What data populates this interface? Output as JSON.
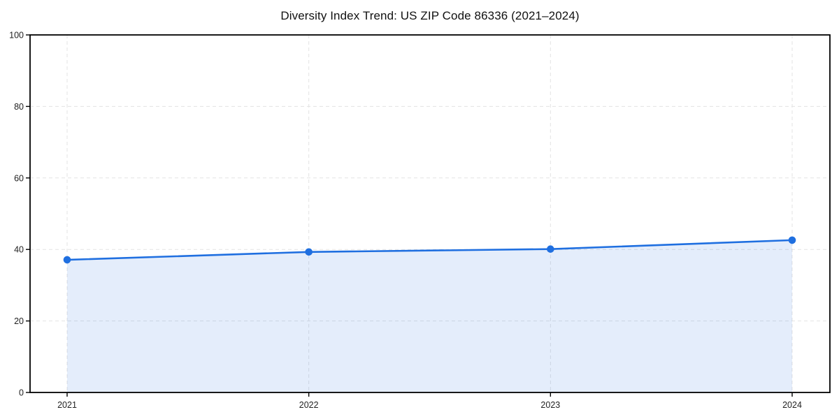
{
  "title": "Diversity Index Trend: US ZIP Code 86336 (2021–2024)",
  "chart_data": {
    "type": "area",
    "title": "Diversity Index Trend: US ZIP Code 86336 (2021–2024)",
    "categories": [
      "2021",
      "2022",
      "2023",
      "2024"
    ],
    "values": [
      37.1,
      39.3,
      40.1,
      42.6
    ],
    "xlabel": "",
    "ylabel": "",
    "ylim": [
      0,
      100
    ],
    "yticks": [
      0,
      20,
      40,
      60,
      80,
      100
    ],
    "grid": "dashed",
    "legend": "none",
    "colors": {
      "line": "#1f6fe0",
      "marker": "#1f6fe0",
      "fill": "rgba(31,111,224,0.12)",
      "gridline": "#e3e3e3",
      "spine": "#000000",
      "tick_text": "#222222"
    }
  }
}
